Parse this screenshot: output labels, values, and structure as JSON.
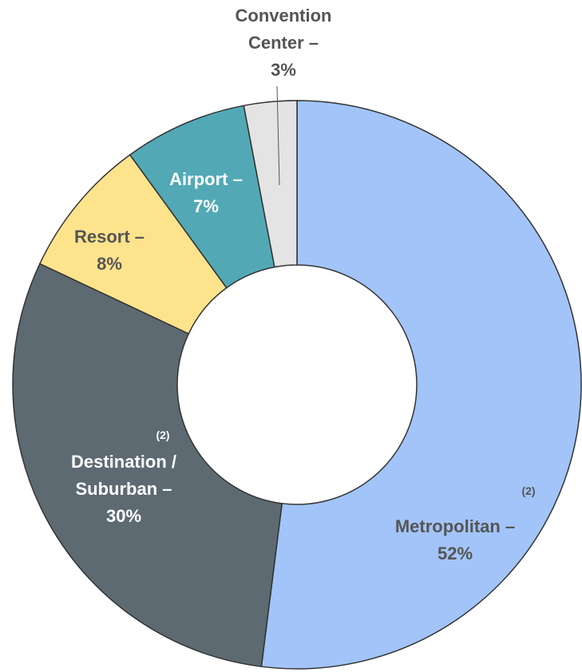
{
  "chart_data": {
    "type": "donut",
    "categories": [
      "Metropolitan –",
      "Destination / Suburban –",
      "Resort –",
      "Airport –",
      "Convention Center –"
    ],
    "values": [
      52,
      30,
      8,
      7,
      3
    ],
    "value_labels": [
      "52%",
      "30%",
      "8%",
      "7%",
      "3%"
    ],
    "notes": [
      "(2)",
      "(2)",
      null,
      null,
      null
    ],
    "colors": [
      "#a2c4f8",
      "#5d6a72",
      "#fde38c",
      "#52a9b5",
      "#e4e4e4"
    ],
    "label_colors": [
      "#555555",
      "#ffffff",
      "#555555",
      "#ffffff",
      "#555555"
    ]
  }
}
